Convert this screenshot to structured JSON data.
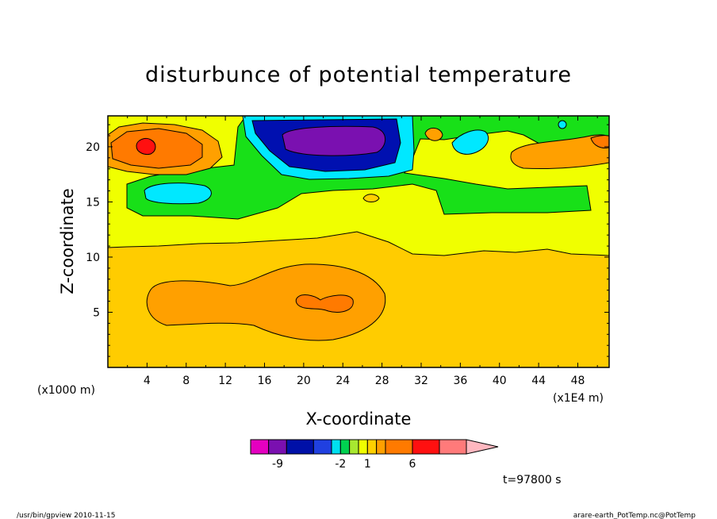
{
  "chart_data": {
    "type": "heatmap",
    "title": "disturbunce of potential temperature",
    "xlabel": "X-coordinate",
    "ylabel": "Z-coordinate",
    "x_unit_label": "(x1000 m)",
    "x_scale_label": "(x1E4 m)",
    "x_ticks": [
      4,
      8,
      12,
      16,
      20,
      24,
      28,
      32,
      36,
      40,
      44,
      48
    ],
    "y_ticks": [
      5,
      10,
      15,
      20
    ],
    "xlim": [
      0,
      51.2
    ],
    "ylim": [
      0,
      22.8
    ],
    "time_label": "t=97800 s",
    "colorbar": {
      "labels": [
        "-9",
        "-2",
        "1",
        "6"
      ],
      "label_levels": [
        -9,
        -2,
        1,
        6
      ],
      "bins": [
        {
          "lo": -12,
          "hi": -10,
          "color": "#e400c0"
        },
        {
          "lo": -10,
          "hi": -8,
          "color": "#7a10b0"
        },
        {
          "lo": -8,
          "hi": -5,
          "color": "#0010a8"
        },
        {
          "lo": -5,
          "hi": -3,
          "color": "#2040e0"
        },
        {
          "lo": -3,
          "hi": -2,
          "color": "#00e0f0"
        },
        {
          "lo": -2,
          "hi": -1,
          "color": "#00d050"
        },
        {
          "lo": -1,
          "hi": 0,
          "color": "#a8e830"
        },
        {
          "lo": 0,
          "hi": 1,
          "color": "#f0ff00"
        },
        {
          "lo": 1,
          "hi": 2,
          "color": "#ffd000"
        },
        {
          "lo": 2,
          "hi": 3,
          "color": "#ffa000"
        },
        {
          "lo": 3,
          "hi": 6,
          "color": "#ff7a00"
        },
        {
          "lo": 6,
          "hi": 9,
          "color": "#ff1010"
        },
        {
          "lo": 9,
          "hi": 12,
          "color": "#ff7a7a"
        },
        {
          "lo": 12,
          "hi": 14,
          "color": "#ffb8c0"
        }
      ]
    },
    "colors": {
      "background_field": "#ffcc00",
      "field_light": "#f0ff00",
      "field_green": "#18e018",
      "field_cyan": "#00e8ff",
      "field_blue": "#0010b0",
      "field_purple": "#7a10b0",
      "field_orange": "#ffa000",
      "field_dark_orange": "#ff7a00",
      "field_red": "#ff1010"
    }
  },
  "footer": {
    "left": "/usr/bin/gpview  2010-11-15",
    "right": "arare-earth_PotTemp.nc@PotTemp"
  }
}
